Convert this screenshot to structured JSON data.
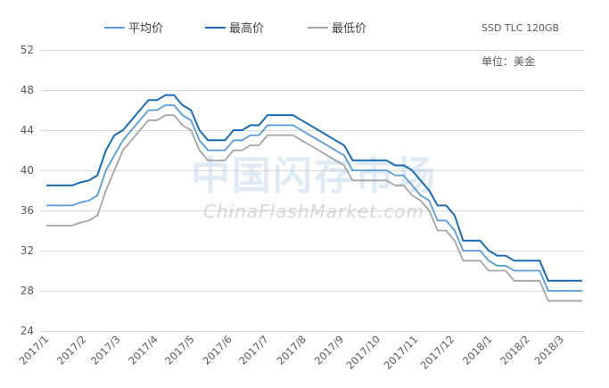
{
  "chart_data": {
    "type": "line",
    "title": "SSD TLC 120GB",
    "annotation": "单位：美金",
    "ylim": [
      24,
      52
    ],
    "yticks": [
      24,
      28,
      32,
      36,
      40,
      44,
      48,
      52
    ],
    "xticks": [
      "2017/1",
      "2017/2",
      "2017/3",
      "2017/4",
      "2017/5",
      "2017/6",
      "2017/7",
      "2017/8",
      "2017/9",
      "2017/10",
      "2017/11",
      "2017/12",
      "2018/1",
      "2018/2",
      "2018/3"
    ],
    "grid": true,
    "legend": "top",
    "x": [
      "2017-01-01",
      "2017-01-08",
      "2017-01-15",
      "2017-01-22",
      "2017-01-29",
      "2017-02-05",
      "2017-02-12",
      "2017-02-19",
      "2017-02-26",
      "2017-03-05",
      "2017-03-12",
      "2017-03-19",
      "2017-03-26",
      "2017-04-02",
      "2017-04-09",
      "2017-04-16",
      "2017-04-23",
      "2017-04-30",
      "2017-05-07",
      "2017-05-14",
      "2017-05-21",
      "2017-05-28",
      "2017-06-04",
      "2017-06-11",
      "2017-06-18",
      "2017-06-25",
      "2017-07-02",
      "2017-07-09",
      "2017-07-16",
      "2017-07-23",
      "2017-07-30",
      "2017-08-06",
      "2017-08-13",
      "2017-08-20",
      "2017-08-27",
      "2017-09-03",
      "2017-09-10",
      "2017-09-17",
      "2017-09-24",
      "2017-10-01",
      "2017-10-08",
      "2017-10-15",
      "2017-10-22",
      "2017-10-29",
      "2017-11-05",
      "2017-11-12",
      "2017-11-19",
      "2017-11-26",
      "2017-12-03",
      "2017-12-10",
      "2017-12-17",
      "2017-12-24",
      "2017-12-31",
      "2018-01-07",
      "2018-01-14",
      "2018-01-21",
      "2018-01-28",
      "2018-02-04",
      "2018-02-11",
      "2018-02-18",
      "2018-02-25",
      "2018-03-04",
      "2018-03-11",
      "2018-03-18"
    ],
    "series": [
      {
        "name": "平均价",
        "color": "#5B9BD5",
        "values": [
          36.5,
          36.5,
          36.5,
          36.5,
          36.8,
          37.0,
          37.5,
          40.0,
          41.5,
          43.0,
          44.0,
          45.0,
          46.0,
          46.0,
          46.5,
          46.5,
          45.5,
          45.0,
          43.0,
          42.0,
          42.0,
          42.0,
          43.0,
          43.0,
          43.5,
          43.5,
          44.5,
          44.5,
          44.5,
          44.5,
          44.0,
          43.5,
          43.0,
          42.5,
          42.0,
          41.5,
          40.0,
          40.0,
          40.0,
          40.0,
          40.0,
          39.5,
          39.5,
          38.5,
          37.5,
          37.0,
          35.0,
          35.0,
          34.0,
          32.0,
          32.0,
          32.0,
          31.0,
          30.5,
          30.5,
          30.0,
          30.0,
          30.0,
          30.0,
          28.0,
          28.0,
          28.0,
          28.0,
          28.0
        ]
      },
      {
        "name": "最高价",
        "color": "#1C6BAF",
        "values": [
          38.5,
          38.5,
          38.5,
          38.5,
          38.8,
          39.0,
          39.5,
          42.0,
          43.5,
          44.0,
          45.0,
          46.0,
          47.0,
          47.0,
          47.5,
          47.5,
          46.5,
          46.0,
          44.0,
          43.0,
          43.0,
          43.0,
          44.0,
          44.0,
          44.5,
          44.5,
          45.5,
          45.5,
          45.5,
          45.5,
          45.0,
          44.5,
          44.0,
          43.5,
          43.0,
          42.5,
          41.0,
          41.0,
          41.0,
          41.0,
          41.0,
          40.5,
          40.5,
          40.0,
          39.0,
          38.0,
          36.5,
          36.5,
          35.5,
          33.0,
          33.0,
          33.0,
          32.0,
          31.5,
          31.5,
          31.0,
          31.0,
          31.0,
          31.0,
          29.0,
          29.0,
          29.0,
          29.0,
          29.0
        ]
      },
      {
        "name": "最低价",
        "color": "#A5A5A5",
        "values": [
          34.5,
          34.5,
          34.5,
          34.5,
          34.8,
          35.0,
          35.5,
          38.0,
          40.0,
          42.0,
          43.0,
          44.0,
          45.0,
          45.0,
          45.5,
          45.5,
          44.5,
          44.0,
          42.0,
          41.0,
          41.0,
          41.0,
          42.0,
          42.0,
          42.5,
          42.5,
          43.5,
          43.5,
          43.5,
          43.5,
          43.0,
          42.5,
          42.0,
          41.5,
          41.0,
          40.5,
          39.0,
          39.0,
          39.0,
          39.0,
          39.0,
          38.5,
          38.5,
          37.5,
          37.0,
          36.0,
          34.0,
          34.0,
          33.0,
          31.0,
          31.0,
          31.0,
          30.0,
          30.0,
          30.0,
          29.0,
          29.0,
          29.0,
          29.0,
          27.0,
          27.0,
          27.0,
          27.0,
          27.0
        ]
      }
    ]
  },
  "watermark": {
    "cn": "中国闪存市场",
    "en": "ChinaFlashMarket.com"
  }
}
